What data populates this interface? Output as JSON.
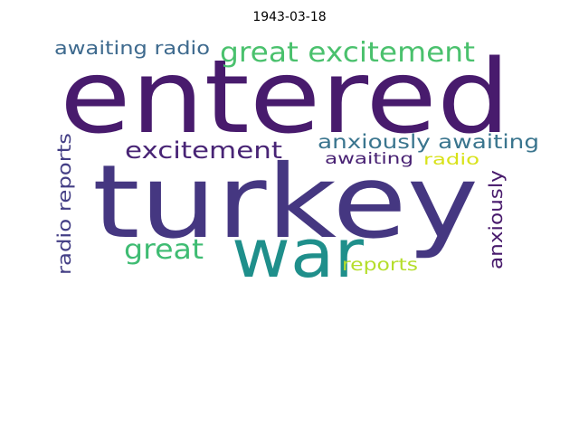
{
  "title": "1943-03-18",
  "words": [
    {
      "text": "entered",
      "color": "#481b6d"
    },
    {
      "text": "turkey",
      "color": "#453781"
    },
    {
      "text": "war",
      "color": "#1f8f8b"
    },
    {
      "text": "great excitement",
      "color": "#4ac16d"
    },
    {
      "text": "awaiting radio",
      "color": "#3e6a8e"
    },
    {
      "text": "excitement",
      "color": "#482475"
    },
    {
      "text": "anxiously awaiting",
      "color": "#3a758e"
    },
    {
      "text": "awaiting",
      "color": "#482173"
    },
    {
      "text": "radio",
      "color": "#d8e219"
    },
    {
      "text": "radio reports",
      "color": "#433e85"
    },
    {
      "text": "great",
      "color": "#3fbc73"
    },
    {
      "text": "reports",
      "color": "#b5de2b"
    },
    {
      "text": "anxiously",
      "color": "#481a6c"
    }
  ]
}
